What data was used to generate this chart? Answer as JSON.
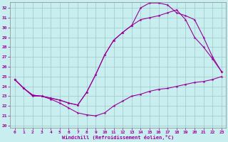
{
  "xlabel": "Windchill (Refroidissement éolien,°C)",
  "xlim": [
    -0.5,
    23.5
  ],
  "ylim": [
    19.8,
    32.6
  ],
  "yticks": [
    20,
    21,
    22,
    23,
    24,
    25,
    26,
    27,
    28,
    29,
    30,
    31,
    32
  ],
  "xticks": [
    0,
    1,
    2,
    3,
    4,
    5,
    6,
    7,
    8,
    9,
    10,
    11,
    12,
    13,
    14,
    15,
    16,
    17,
    18,
    19,
    20,
    21,
    22,
    23
  ],
  "bg_color": "#c8eef0",
  "grid_color": "#a0c8c8",
  "line_color": "#990099",
  "line1_x": [
    0,
    1,
    2,
    3,
    4,
    5,
    6,
    7,
    8,
    9,
    10,
    11,
    12,
    13,
    14,
    15,
    16,
    17,
    18,
    19,
    20,
    21,
    22,
    23
  ],
  "line1_y": [
    24.7,
    23.8,
    23.0,
    23.0,
    22.7,
    22.3,
    21.8,
    21.3,
    21.1,
    21.0,
    21.3,
    22.0,
    22.5,
    23.0,
    23.2,
    23.5,
    23.7,
    23.8,
    24.0,
    24.2,
    24.4,
    24.5,
    24.7,
    25.0
  ],
  "line2_x": [
    0,
    1,
    2,
    3,
    4,
    5,
    6,
    7,
    8,
    9,
    10,
    11,
    12,
    13,
    14,
    15,
    16,
    17,
    18,
    19,
    20,
    21,
    22,
    23
  ],
  "line2_y": [
    24.7,
    23.8,
    23.1,
    23.0,
    22.8,
    22.6,
    22.3,
    22.1,
    23.4,
    25.2,
    27.2,
    28.7,
    29.5,
    30.2,
    30.8,
    31.0,
    31.2,
    31.5,
    31.8,
    30.8,
    29.0,
    28.0,
    26.8,
    25.5
  ],
  "line3_x": [
    0,
    1,
    2,
    3,
    4,
    5,
    6,
    7,
    8,
    9,
    10,
    11,
    12,
    13,
    14,
    15,
    16,
    17,
    18,
    19,
    20,
    21,
    22,
    23
  ],
  "line3_y": [
    24.7,
    23.8,
    23.1,
    23.0,
    22.8,
    22.6,
    22.3,
    22.1,
    23.4,
    25.2,
    27.2,
    28.7,
    29.5,
    30.2,
    32.0,
    32.5,
    32.5,
    32.3,
    31.5,
    31.2,
    30.8,
    29.0,
    27.0,
    25.5
  ]
}
